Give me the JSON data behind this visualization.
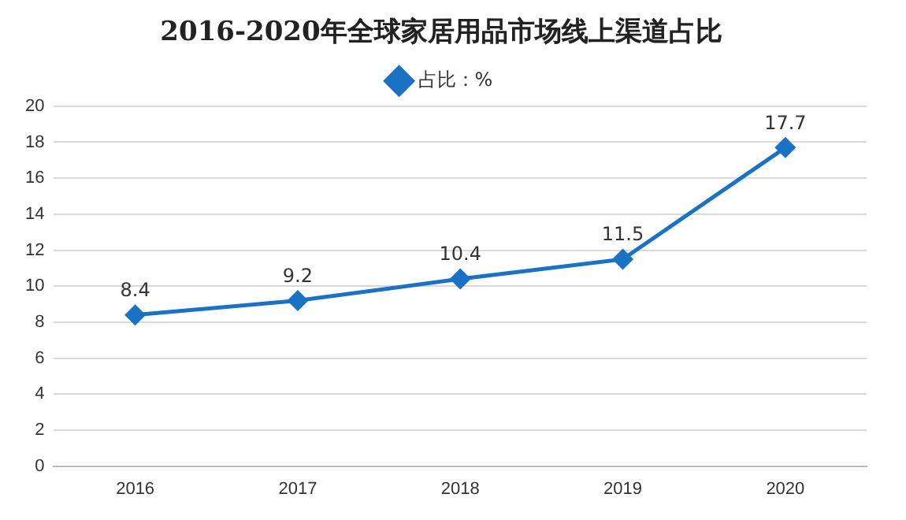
{
  "chart_data": {
    "type": "line",
    "title": "2016-2020年全球家居用品市场线上渠道占比",
    "categories": [
      "2016",
      "2017",
      "2018",
      "2019",
      "2020"
    ],
    "series": [
      {
        "name": "占比：%",
        "color": "#1a72c4",
        "values": [
          8.4,
          9.2,
          10.4,
          11.5,
          17.7
        ]
      }
    ],
    "ylim": [
      0,
      20
    ],
    "yticks": [
      0,
      2,
      4,
      6,
      8,
      10,
      12,
      14,
      16,
      18,
      20
    ],
    "grid": "y",
    "legend": "top",
    "marker": "diamond",
    "line_style": "solid",
    "data_labels": true
  }
}
